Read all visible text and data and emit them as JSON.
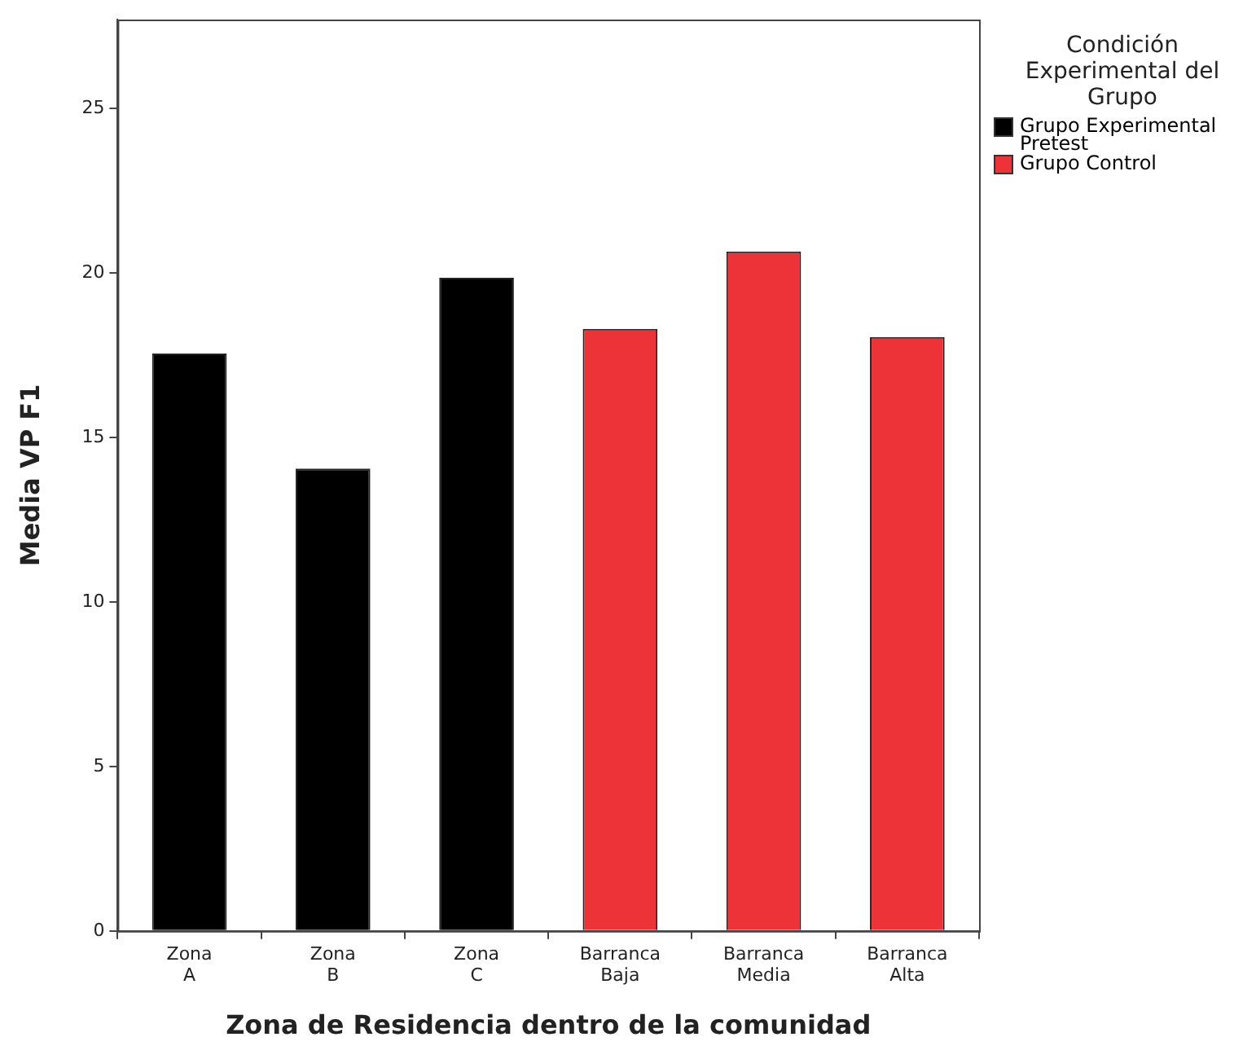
{
  "chart_data": {
    "type": "bar",
    "xlabel": "Zona de Residencia dentro de la comunidad",
    "ylabel": "Media VP F1",
    "legend_title": "Condición Experimental del Grupo",
    "legend": "right",
    "grid": false,
    "categories": [
      "Zona A",
      "Zona B",
      "Zona C",
      "Barranca Baja",
      "Barranca Media",
      "Barranca Alta"
    ],
    "series": [
      {
        "name": "Grupo Experimental Pretest",
        "color": "#000000",
        "values": [
          17.55,
          14.05,
          19.85,
          null,
          null,
          null
        ]
      },
      {
        "name": "Grupo Control",
        "color": "#ee3338",
        "values": [
          null,
          null,
          null,
          18.3,
          20.65,
          18.05
        ]
      }
    ],
    "ylim": [
      0,
      27.7
    ],
    "yticks": [
      0,
      5,
      10,
      15,
      20,
      25
    ]
  }
}
